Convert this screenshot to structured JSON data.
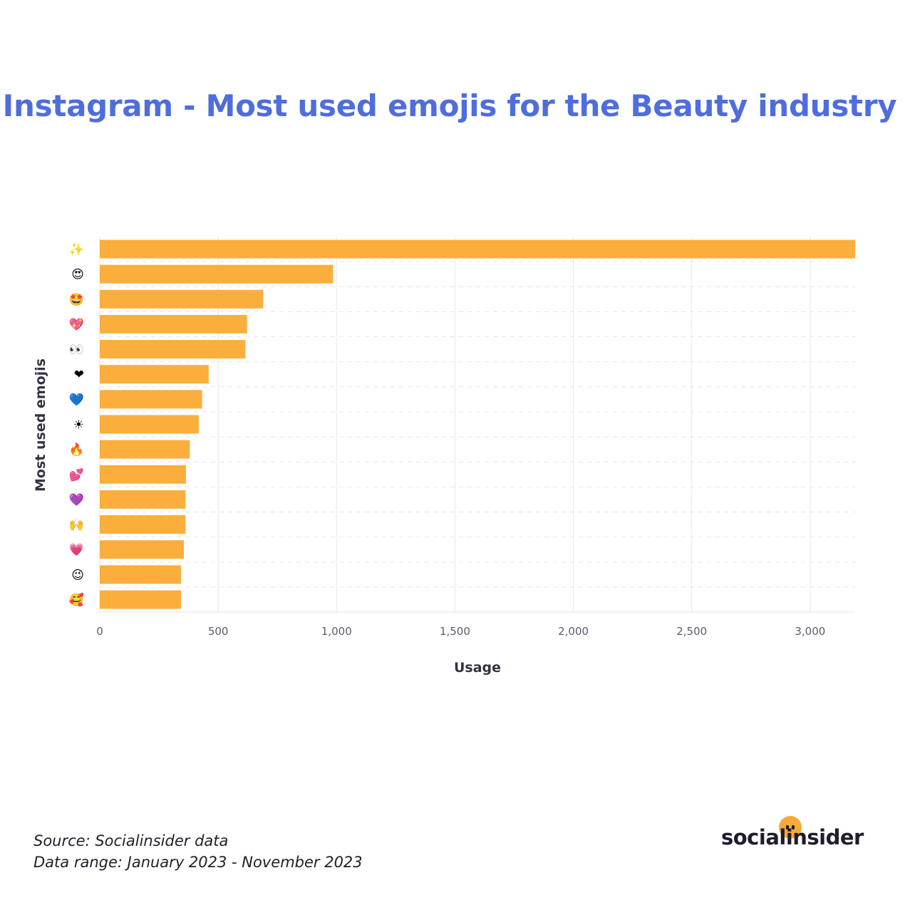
{
  "title": "Instagram - Most used emojis for the Beauty industry",
  "chart_data": {
    "type": "bar",
    "orientation": "horizontal",
    "categories": [
      "✨",
      "😍",
      "🤩",
      "💖",
      "👀",
      "❤",
      "💙",
      "☀",
      "🔥",
      "💕",
      "💜",
      "🙌",
      "💗",
      "😉",
      "🥰"
    ],
    "values": [
      3190,
      985,
      690,
      622,
      615,
      460,
      432,
      418,
      380,
      364,
      362,
      362,
      355,
      343,
      343
    ],
    "xlabel": "Usage",
    "ylabel": "Most used emojis",
    "xlim": [
      0,
      3190
    ],
    "xticks": [
      0,
      500,
      1000,
      1500,
      2000,
      2500,
      3000
    ],
    "xtick_labels": [
      "0",
      "500",
      "1,000",
      "1,500",
      "2,000",
      "2,500",
      "3,000"
    ],
    "grid": true,
    "bar_color": "#FBAE3C"
  },
  "footer": {
    "source": "Source: Socialinsider data",
    "range": "Data range: January 2023 - November 2023"
  },
  "logo": {
    "text": "socialinsider"
  },
  "colors": {
    "title": "#4F6DDD",
    "bar": "#FBAE3C",
    "logo_dot": "#F8A93A"
  }
}
